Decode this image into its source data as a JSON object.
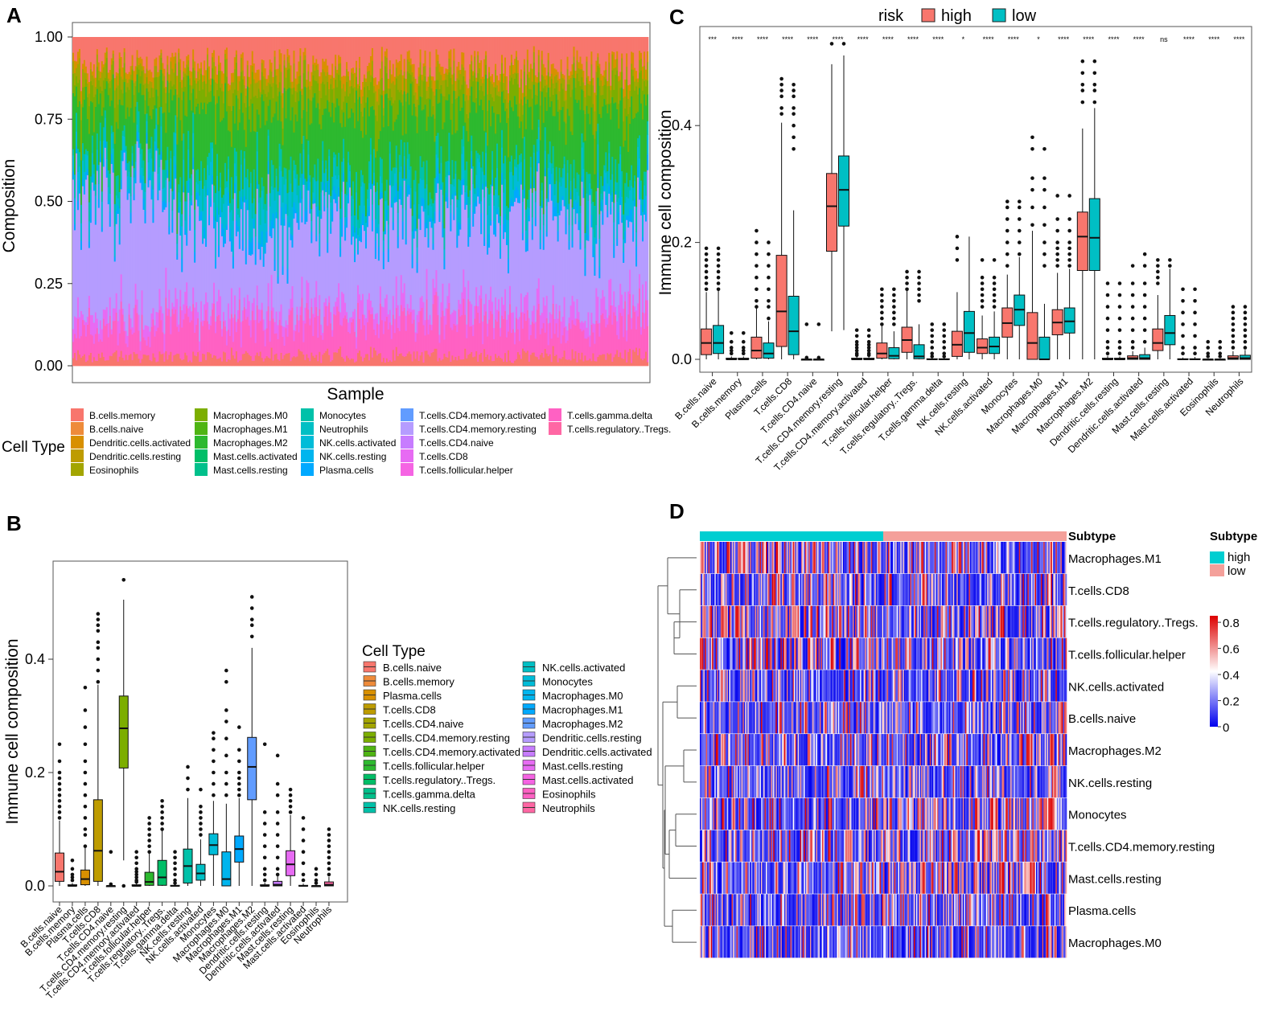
{
  "panels": {
    "a": {
      "letter": "A",
      "ylabel": "Composition",
      "xlabel": "Sample",
      "yticks": [
        "1.00",
        "0.75",
        "0.50",
        "0.25",
        "0.00"
      ],
      "legend_title": "Cell Type"
    },
    "b": {
      "letter": "B",
      "ylabel": "Immune cell composition",
      "yticks": [
        "0.4",
        "0.2",
        "0.0"
      ],
      "legend_title": "Cell Type"
    },
    "c": {
      "letter": "C",
      "ylabel": "Immune cell composition",
      "yticks": [
        "0.4",
        "0.2",
        "0.0"
      ],
      "legend_title": "risk",
      "legend_high": "high",
      "legend_low": "low"
    },
    "d": {
      "letter": "D",
      "annotation_label": "Subtype",
      "legend_title": "Subtype",
      "legend_high": "high",
      "legend_low": "low",
      "scale_ticks": [
        "0.8",
        "0.6",
        "0.4",
        "0.2",
        "0"
      ]
    }
  },
  "colors": {
    "high": "#F8766D",
    "low": "#00BFC4",
    "hm_low": "#0000EE",
    "hm_mid": "#FFFFFF",
    "hm_high": "#DD0000",
    "subtype_high": "#00CED1",
    "subtype_low": "#F4A09A"
  },
  "chart_data": [
    {
      "id": "A",
      "type": "stacked-bar",
      "title": "",
      "xlabel": "Sample",
      "ylabel": "Composition",
      "ylim": [
        0,
        1
      ],
      "legend_title": "Cell Type",
      "legend_columns": [
        [
          "B.cells.memory",
          "B.cells.naive",
          "Dendritic.cells.activated",
          "Dendritic.cells.resting",
          "Eosinophils"
        ],
        [
          "Macrophages.M0",
          "Macrophages.M1",
          "Macrophages.M2",
          "Mast.cells.activated",
          "Mast.cells.resting"
        ],
        [
          "Monocytes",
          "Neutrophils",
          "NK.cells.activated",
          "NK.cells.resting",
          "Plasma.cells"
        ],
        [
          "T.cells.CD4.memory.activated",
          "T.cells.CD4.memory.resting",
          "T.cells.CD4.naive",
          "T.cells.CD8",
          "T.cells.follicular.helper"
        ],
        [
          "T.cells.gamma.delta",
          "T.cells.regulatory..Tregs."
        ]
      ],
      "legend_colors": [
        [
          "#F8766D",
          "#EE8B3A",
          "#D89000",
          "#BE9C00",
          "#A3A500"
        ],
        [
          "#7CAE00",
          "#4FB413",
          "#2DB92F",
          "#00BE67",
          "#00C08B"
        ],
        [
          "#00C1A9",
          "#00BFC4",
          "#00BCD8",
          "#00B5EE",
          "#00A9FF"
        ],
        [
          "#619CFF",
          "#B59CFF",
          "#C77CFF",
          "#E76BF3",
          "#F564E3"
        ],
        [
          "#FF61C3",
          "#FF67A4"
        ]
      ],
      "approx_mean_composition": {
        "B.cells.naive": 0.04,
        "T.cells.CD8": 0.08,
        "T.cells.follicular.helper": 0.05,
        "T.cells.CD4.memory.resting": 0.28,
        "NK.cells.resting": 0.04,
        "Monocytes": 0.08,
        "Macrophages.M0": 0.04,
        "Macrophages.M1": 0.06,
        "Macrophages.M2": 0.22,
        "Mast.cells.resting": 0.05,
        "Plasma.cells": 0.03
      }
    },
    {
      "id": "B",
      "type": "box",
      "title": "",
      "xlabel": "",
      "ylabel": "Immune cell composition",
      "ylim": [
        -0.02,
        0.56
      ],
      "legend_title": "Cell Type",
      "categories": [
        "B.cells.naive",
        "B.cells.memory",
        "Plasma.cells",
        "T.cells.CD8",
        "T.cells.CD4.naive",
        "T.cells.CD4.memory.resting",
        "T.cells.CD4.memory.activated",
        "T.cells.follicular.helper",
        "T.cells.regulatory..Tregs.",
        "T.cells.gamma.delta",
        "NK.cells.resting",
        "NK.cells.activated",
        "Monocytes",
        "Macrophages.M0",
        "Macrophages.M1",
        "Macrophages.M2",
        "Dendritic.cells.resting",
        "Dendritic.cells.activated",
        "Mast.cells.resting",
        "Mast.cells.activated",
        "Eosinophils",
        "Neutrophils"
      ],
      "colors": [
        "#F8766D",
        "#EE8B3A",
        "#D89000",
        "#BE9C00",
        "#A3A500",
        "#7CAE00",
        "#4FB413",
        "#2DB92F",
        "#00BE67",
        "#00C08B",
        "#00C1A9",
        "#00BFC4",
        "#00BCD8",
        "#00B5EE",
        "#00A9FF",
        "#619CFF",
        "#B59CFF",
        "#C77CFF",
        "#E76BF3",
        "#F564E3",
        "#FF61C3",
        "#FF67A4"
      ],
      "stats": [
        [
          0.0,
          0.008,
          0.025,
          0.058,
          0.115
        ],
        [
          0.0,
          0.0,
          0.0,
          0.002,
          0.005
        ],
        [
          0.0,
          0.002,
          0.012,
          0.028,
          0.068
        ],
        [
          0.0,
          0.008,
          0.062,
          0.152,
          0.355
        ],
        [
          0.0,
          0.0,
          0.0,
          0.0,
          0.001
        ],
        [
          0.045,
          0.208,
          0.278,
          0.335,
          0.505
        ],
        [
          0.0,
          0.0,
          0.0,
          0.002,
          0.005
        ],
        [
          0.0,
          0.001,
          0.007,
          0.024,
          0.058
        ],
        [
          0.0,
          0.001,
          0.015,
          0.045,
          0.098
        ],
        [
          0.0,
          0.0,
          0.0,
          0.001,
          0.003
        ],
        [
          0.0,
          0.005,
          0.035,
          0.065,
          0.155
        ],
        [
          0.0,
          0.01,
          0.022,
          0.038,
          0.082
        ],
        [
          0.0,
          0.055,
          0.072,
          0.092,
          0.15
        ],
        [
          0.0,
          0.0,
          0.012,
          0.06,
          0.145
        ],
        [
          0.0,
          0.042,
          0.065,
          0.088,
          0.155
        ],
        [
          0.0,
          0.152,
          0.21,
          0.262,
          0.42
        ],
        [
          0.0,
          0.0,
          0.0,
          0.002,
          0.006
        ],
        [
          0.0,
          0.0,
          0.002,
          0.008,
          0.018
        ],
        [
          0.0,
          0.018,
          0.038,
          0.062,
          0.125
        ],
        [
          0.0,
          0.0,
          0.0,
          0.001,
          0.004
        ],
        [
          0.0,
          0.0,
          0.0,
          0.0,
          0.002
        ],
        [
          0.0,
          0.0,
          0.002,
          0.007,
          0.016
        ]
      ],
      "outliers": [
        [
          0.12,
          0.13,
          0.14,
          0.15,
          0.16,
          0.17,
          0.18,
          0.19,
          0.2,
          0.22,
          0.25
        ],
        [
          0.01,
          0.015,
          0.02,
          0.03,
          0.045
        ],
        [
          0.07,
          0.09,
          0.1,
          0.12,
          0.14,
          0.16,
          0.18,
          0.2,
          0.22,
          0.25,
          0.28,
          0.31,
          0.35
        ],
        [
          0.36,
          0.38,
          0.4,
          0.42,
          0.43,
          0.45,
          0.46,
          0.47,
          0.48
        ],
        [
          0.003,
          0.06
        ],
        [
          0.0,
          0.54
        ],
        [
          0.007,
          0.01,
          0.015,
          0.02,
          0.025,
          0.03,
          0.04,
          0.05,
          0.06
        ],
        [
          0.06,
          0.07,
          0.08,
          0.09,
          0.1,
          0.11,
          0.12
        ],
        [
          0.1,
          0.11,
          0.12,
          0.13,
          0.14,
          0.15
        ],
        [
          0.005,
          0.01,
          0.02,
          0.03,
          0.04,
          0.05,
          0.06
        ],
        [
          0.17,
          0.19,
          0.21
        ],
        [
          0.09,
          0.1,
          0.11,
          0.12,
          0.13,
          0.14,
          0.17
        ],
        [
          0.16,
          0.18,
          0.2,
          0.22,
          0.24,
          0.26,
          0.27
        ],
        [
          0.16,
          0.18,
          0.2,
          0.23,
          0.26,
          0.29,
          0.31,
          0.36,
          0.38
        ],
        [
          0.16,
          0.17,
          0.18,
          0.19,
          0.2,
          0.22,
          0.24,
          0.28
        ],
        [
          0.44,
          0.46,
          0.47,
          0.49,
          0.51
        ],
        [
          0.01,
          0.02,
          0.03,
          0.05,
          0.07,
          0.09,
          0.11,
          0.13,
          0.25
        ],
        [
          0.02,
          0.03,
          0.05,
          0.07,
          0.09,
          0.11,
          0.13,
          0.16,
          0.18,
          0.23
        ],
        [
          0.13,
          0.14,
          0.15,
          0.16,
          0.17
        ],
        [
          0.01,
          0.02,
          0.04,
          0.06,
          0.08,
          0.1,
          0.12
        ],
        [
          0.005,
          0.01,
          0.02,
          0.03
        ],
        [
          0.02,
          0.03,
          0.04,
          0.05,
          0.06,
          0.07,
          0.08,
          0.09,
          0.1
        ]
      ]
    },
    {
      "id": "C",
      "type": "box",
      "title": "",
      "xlabel": "",
      "ylabel": "Immune cell composition",
      "ylim": [
        -0.02,
        0.56
      ],
      "legend": [
        "high",
        "low"
      ],
      "categories": [
        "B.cells.naive",
        "B.cells.memory",
        "Plasma.cells",
        "T.cells.CD8",
        "T.cells.CD4.naive",
        "T.cells.CD4.memory.resting",
        "T.cells.CD4.memory.activated",
        "T.cells.follicular.helper",
        "T.cells.regulatory..Tregs.",
        "T.cells.gamma.delta",
        "NK.cells.resting",
        "NK.cells.activated",
        "Monocytes",
        "Macrophages.M0",
        "Macrophages.M1",
        "Macrophages.M2",
        "Dendritic.cells.resting",
        "Dendritic.cells.activated",
        "Mast.cells.resting",
        "Mast.cells.activated",
        "Eosinophils",
        "Neutrophils"
      ],
      "significance": [
        "***",
        "****",
        "****",
        "****",
        "****",
        "****",
        "****",
        "****",
        "****",
        "****",
        "*",
        "****",
        "****",
        "*",
        "****",
        "****",
        "****",
        "****",
        "ns",
        "****",
        "****",
        "****"
      ],
      "series": [
        {
          "name": "high",
          "stats": [
            [
              0.0,
              0.008,
              0.028,
              0.052,
              0.115
            ],
            [
              0.0,
              0.0,
              0.0,
              0.002,
              0.005
            ],
            [
              0.0,
              0.002,
              0.015,
              0.038,
              0.088
            ],
            [
              0.0,
              0.022,
              0.082,
              0.178,
              0.405
            ],
            [
              0.0,
              0.0,
              0.0,
              0.0,
              0.001
            ],
            [
              0.048,
              0.185,
              0.262,
              0.318,
              0.505
            ],
            [
              0.0,
              0.0,
              0.0,
              0.002,
              0.005
            ],
            [
              0.0,
              0.002,
              0.01,
              0.028,
              0.058
            ],
            [
              0.0,
              0.012,
              0.033,
              0.055,
              0.118
            ],
            [
              0.0,
              0.0,
              0.0,
              0.001,
              0.003
            ],
            [
              0.0,
              0.005,
              0.025,
              0.048,
              0.115
            ],
            [
              0.0,
              0.01,
              0.02,
              0.035,
              0.075
            ],
            [
              0.0,
              0.038,
              0.062,
              0.088,
              0.145
            ],
            [
              0.0,
              0.0,
              0.028,
              0.08,
              0.22
            ],
            [
              0.0,
              0.042,
              0.063,
              0.085,
              0.148
            ],
            [
              0.0,
              0.152,
              0.21,
              0.252,
              0.395
            ],
            [
              0.0,
              0.0,
              0.0,
              0.002,
              0.006
            ],
            [
              0.0,
              0.0,
              0.002,
              0.006,
              0.014
            ],
            [
              0.0,
              0.015,
              0.028,
              0.052,
              0.11
            ],
            [
              0.0,
              0.0,
              0.0,
              0.001,
              0.003
            ],
            [
              0.0,
              0.0,
              0.0,
              0.0,
              0.001
            ],
            [
              0.0,
              0.0,
              0.002,
              0.006,
              0.014
            ]
          ]
        },
        {
          "name": "low",
          "stats": [
            [
              0.0,
              0.01,
              0.028,
              0.058,
              0.118
            ],
            [
              0.0,
              0.0,
              0.0,
              0.002,
              0.005
            ],
            [
              0.0,
              0.002,
              0.01,
              0.028,
              0.065
            ],
            [
              0.0,
              0.008,
              0.048,
              0.108,
              0.255
            ],
            [
              0.0,
              0.0,
              0.0,
              0.0,
              0.001
            ],
            [
              0.05,
              0.228,
              0.29,
              0.348,
              0.52
            ],
            [
              0.0,
              0.0,
              0.0,
              0.002,
              0.005
            ],
            [
              0.0,
              0.001,
              0.006,
              0.02,
              0.048
            ],
            [
              0.0,
              0.001,
              0.005,
              0.025,
              0.06
            ],
            [
              0.0,
              0.0,
              0.0,
              0.001,
              0.003
            ],
            [
              0.0,
              0.012,
              0.045,
              0.082,
              0.21
            ],
            [
              0.0,
              0.01,
              0.022,
              0.038,
              0.082
            ],
            [
              0.0,
              0.058,
              0.085,
              0.11,
              0.175
            ],
            [
              0.0,
              0.0,
              0.0,
              0.038,
              0.095
            ],
            [
              0.0,
              0.045,
              0.065,
              0.088,
              0.155
            ],
            [
              0.0,
              0.152,
              0.208,
              0.275,
              0.43
            ],
            [
              0.0,
              0.0,
              0.0,
              0.002,
              0.005
            ],
            [
              0.0,
              0.0,
              0.002,
              0.008,
              0.02
            ],
            [
              0.0,
              0.025,
              0.045,
              0.075,
              0.155
            ],
            [
              0.0,
              0.0,
              0.0,
              0.001,
              0.004
            ],
            [
              0.0,
              0.0,
              0.0,
              0.0,
              0.001
            ],
            [
              0.0,
              0.0,
              0.002,
              0.007,
              0.016
            ]
          ]
        }
      ]
    },
    {
      "id": "D",
      "type": "heatmap",
      "title": "",
      "annotation": "Subtype",
      "annotation_levels": [
        "high",
        "low"
      ],
      "rows": [
        "Macrophages.M1",
        "T.cells.CD8",
        "T.cells.regulatory..Tregs.",
        "T.cells.follicular.helper",
        "NK.cells.activated",
        "B.cells.naive",
        "Macrophages.M2",
        "NK.cells.resting",
        "Monocytes",
        "T.cells.CD4.memory.resting",
        "Mast.cells.resting",
        "Plasma.cells",
        "Macrophages.M0"
      ],
      "scale_range": [
        0,
        0.85
      ],
      "colormap": [
        "#0000EE",
        "#FFFFFF",
        "#DD0000"
      ]
    }
  ]
}
